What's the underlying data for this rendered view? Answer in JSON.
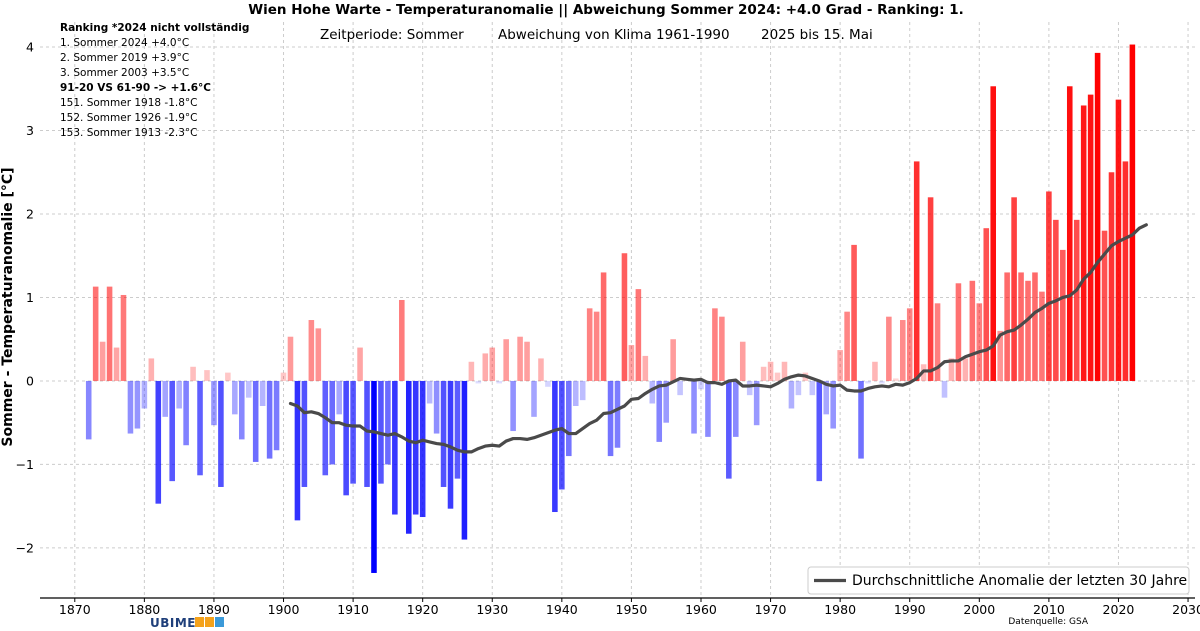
{
  "title": "Wien Hohe Warte - Temperaturanomalie || Abweichung Sommer 2024: +4.0 Grad - Ranking: 1.",
  "subtitle": {
    "period": "Zeitperiode: Sommer",
    "baseline": "Abweichung von Klima 1961-1990",
    "note": "2025 bis 15. Mai"
  },
  "ranking": {
    "header": "Ranking  *2024 nicht vollständig",
    "top": [
      "1.  Sommer 2024  +4.0°C",
      "2.  Sommer 2019  +3.9°C",
      "3.  Sommer 2003  +3.5°C"
    ],
    "compare": "91-20  VS  61-90 -> +1.6°C",
    "bottom": [
      "151.  Sommer 1918  -1.8°C",
      "152.  Sommer 1926  -1.9°C",
      "153.  Sommer 1913  -2.3°C"
    ]
  },
  "legend_label": "Durchschnittliche Anomalie der letzten 30 Jahre",
  "source": "Datenquelle: GSA",
  "logo": "UBIMET",
  "colors": {
    "warm": "#ff0000",
    "cold": "#0000ff",
    "mean_line": "#4a4a4a",
    "grid": "#cccccc"
  },
  "chart_data": {
    "type": "bar",
    "ylabel": "Sommer - Temperaturanomalie [°C]",
    "xlim": [
      1865,
      2031
    ],
    "ylim": [
      -2.6,
      4.3
    ],
    "xticks": [
      1870,
      1880,
      1890,
      1900,
      1910,
      1920,
      1930,
      1940,
      1950,
      1960,
      1970,
      1980,
      1990,
      2000,
      2010,
      2020,
      2030
    ],
    "yticks": [
      -2,
      -1,
      0,
      1,
      2,
      3,
      4
    ],
    "grid": true,
    "legend_position": "bottom-right",
    "bars": {
      "start_year": 1872,
      "values": [
        -0.7,
        1.13,
        0.47,
        1.13,
        0.4,
        1.03,
        -0.63,
        -0.57,
        -0.33,
        0.27,
        -1.47,
        -0.43,
        -1.2,
        -0.33,
        -0.77,
        0.17,
        -1.13,
        0.13,
        -0.53,
        -1.27,
        0.1,
        -0.4,
        -0.7,
        -0.2,
        -0.97,
        -0.3,
        -0.93,
        -0.83,
        0.1,
        0.53,
        -1.67,
        -1.27,
        0.73,
        0.63,
        -1.13,
        -1.0,
        -0.4,
        -1.37,
        -1.23,
        0.4,
        -1.27,
        -2.3,
        -1.23,
        -1.0,
        -1.6,
        0.97,
        -1.83,
        -1.6,
        -1.63,
        -0.27,
        -0.63,
        -1.27,
        -1.53,
        -1.17,
        -1.9,
        0.23,
        -0.03,
        0.33,
        0.4,
        -0.03,
        0.5,
        -0.6,
        0.53,
        0.47,
        -0.43,
        0.27,
        -0.07,
        -1.57,
        -1.3,
        -0.9,
        -0.3,
        -0.23,
        0.87,
        0.83,
        1.3,
        -0.9,
        -0.8,
        1.53,
        0.43,
        1.1,
        0.3,
        -0.27,
        -0.73,
        -0.5,
        0.5,
        -0.17,
        0.03,
        -0.63,
        -0.1,
        -0.67,
        0.87,
        0.77,
        -1.17,
        -0.67,
        0.47,
        -0.17,
        -0.53,
        0.17,
        0.23,
        0.1,
        0.23,
        -0.33,
        -0.17,
        0.1,
        -0.17,
        -1.2,
        -0.4,
        -0.57,
        0.37,
        0.83,
        1.63,
        -0.93,
        -0.03,
        0.23,
        -0.03,
        0.77,
        0.03,
        0.73,
        0.87,
        2.63,
        0.2,
        2.2,
        0.93,
        -0.2,
        0.27,
        1.17,
        0.27,
        1.2,
        0.93,
        1.83,
        3.53,
        0.6,
        1.3,
        2.2,
        1.3,
        1.2,
        1.3,
        1.07,
        2.27,
        1.93,
        1.57,
        3.53,
        1.93,
        3.3,
        3.43,
        3.93,
        1.8,
        2.5,
        3.37,
        2.63,
        4.03
      ]
    },
    "series": [
      {
        "name": "Durchschnittliche Anomalie der letzten 30 Jahre",
        "start_year": 1901,
        "values": [
          -0.27,
          -0.3,
          -0.38,
          -0.37,
          -0.39,
          -0.44,
          -0.5,
          -0.5,
          -0.53,
          -0.54,
          -0.54,
          -0.6,
          -0.61,
          -0.63,
          -0.65,
          -0.63,
          -0.67,
          -0.72,
          -0.74,
          -0.71,
          -0.73,
          -0.75,
          -0.76,
          -0.79,
          -0.83,
          -0.85,
          -0.85,
          -0.81,
          -0.78,
          -0.77,
          -0.78,
          -0.72,
          -0.69,
          -0.69,
          -0.7,
          -0.68,
          -0.65,
          -0.62,
          -0.59,
          -0.57,
          -0.63,
          -0.63,
          -0.57,
          -0.51,
          -0.47,
          -0.39,
          -0.38,
          -0.34,
          -0.3,
          -0.22,
          -0.21,
          -0.15,
          -0.1,
          -0.06,
          -0.05,
          -0.01,
          0.03,
          0.02,
          0.01,
          0.02,
          -0.02,
          -0.02,
          -0.04,
          0.0,
          0.01,
          -0.06,
          -0.06,
          -0.05,
          -0.06,
          -0.07,
          -0.03,
          0.02,
          0.05,
          0.07,
          0.06,
          0.03,
          0.0,
          -0.04,
          -0.06,
          -0.05,
          -0.11,
          -0.12,
          -0.12,
          -0.09,
          -0.07,
          -0.06,
          -0.07,
          -0.04,
          -0.05,
          -0.02,
          0.03,
          0.12,
          0.12,
          0.16,
          0.23,
          0.24,
          0.24,
          0.29,
          0.32,
          0.35,
          0.37,
          0.42,
          0.55,
          0.59,
          0.61,
          0.67,
          0.74,
          0.82,
          0.87,
          0.93,
          0.96,
          1.0,
          1.02,
          1.09,
          1.22,
          1.3,
          1.42,
          1.52,
          1.62,
          1.67,
          1.71,
          1.75,
          1.83,
          1.87
        ]
      }
    ]
  }
}
